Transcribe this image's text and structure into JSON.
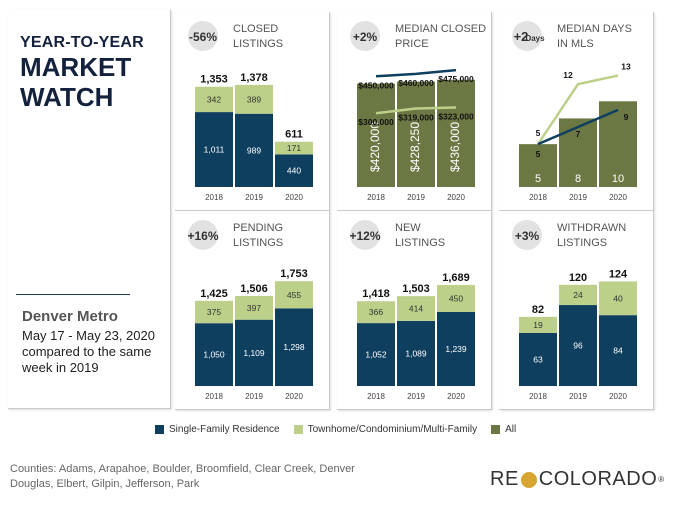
{
  "header": {
    "line1": "YEAR-TO-YEAR",
    "line2": "MARKET",
    "line3": "WATCH"
  },
  "region": {
    "name": "Denver Metro",
    "dates": "May 17 - May 23, 2020 compared to the same week in 2019"
  },
  "colors": {
    "sfr": "#0f3f5f",
    "townhome": "#bcd08a",
    "all": "#6b7844",
    "badge": "#e2e2e2"
  },
  "legend": [
    {
      "label": "Single-Family Residence",
      "color": "#0f3f5f"
    },
    {
      "label": "Townhome/Condominium/Multi-Family",
      "color": "#bcd08a"
    },
    {
      "label": "All",
      "color": "#6b7844"
    }
  ],
  "footer": {
    "counties": "Counties:  Adams, Arapahoe, Boulder, Broomfield, Clear Creek, Denver Douglas, Elbert, Gilpin, Jefferson, Park"
  },
  "logo": {
    "part1": "RE",
    "part2": "COLORADO",
    "mark": "®"
  },
  "chart_data": [
    {
      "type": "bar",
      "title": "CLOSED LISTINGS",
      "badge": "-56%",
      "categories": [
        "2018",
        "2019",
        "2020"
      ],
      "series": [
        {
          "name": "Single-Family Residence",
          "values": [
            1011,
            989,
            440
          ]
        },
        {
          "name": "Townhome/Condominium/Multi-Family",
          "values": [
            342,
            389,
            171
          ]
        }
      ],
      "totals": [
        1353,
        1378,
        611
      ],
      "labels_sfr": [
        "1,011",
        "989",
        "440"
      ],
      "labels_th": [
        "342",
        "389",
        "171"
      ],
      "labels_total": [
        "1,353",
        "1,378",
        "611"
      ]
    },
    {
      "type": "bar",
      "title": "MEDIAN CLOSED PRICE",
      "badge": "+2%",
      "categories": [
        "2018",
        "2019",
        "2020"
      ],
      "series": [
        {
          "name": "All",
          "values": [
            420000,
            428250,
            436000
          ]
        },
        {
          "name": "Single-Family Residence",
          "values": [
            450000,
            460000,
            475000
          ]
        },
        {
          "name": "Townhome/Condominium/Multi-Family",
          "values": [
            300000,
            319000,
            323000
          ]
        }
      ],
      "labels_all": [
        "$420,000",
        "$428,250",
        "$436,000"
      ],
      "labels_sfr": [
        "$450,000",
        "$460,000",
        "$475,000"
      ],
      "labels_th": [
        "$300,000",
        "$319,000",
        "$323,000"
      ]
    },
    {
      "type": "bar",
      "title": "MEDIAN DAYS IN MLS",
      "badge": "+2",
      "badge_unit": "Days",
      "categories": [
        "2018",
        "2019",
        "2020"
      ],
      "series": [
        {
          "name": "All",
          "values": [
            5,
            8,
            10
          ]
        },
        {
          "name": "Single-Family Residence",
          "values": [
            5,
            7,
            9
          ]
        },
        {
          "name": "Townhome/Condominium/Multi-Family",
          "values": [
            5,
            12,
            13
          ]
        }
      ],
      "labels_all": [
        "5",
        "8",
        "10"
      ],
      "labels_sfr": [
        "5",
        "7",
        "9"
      ],
      "labels_th": [
        "5",
        "12",
        "13"
      ]
    },
    {
      "type": "bar",
      "title": "PENDING LISTINGS",
      "badge": "+16%",
      "categories": [
        "2018",
        "2019",
        "2020"
      ],
      "series": [
        {
          "name": "Single-Family Residence",
          "values": [
            1050,
            1109,
            1298
          ]
        },
        {
          "name": "Townhome/Condominium/Multi-Family",
          "values": [
            375,
            397,
            455
          ]
        }
      ],
      "totals": [
        1425,
        1506,
        1753
      ],
      "labels_sfr": [
        "1,050",
        "1,109",
        "1,298"
      ],
      "labels_th": [
        "375",
        "397",
        "455"
      ],
      "labels_total": [
        "1,425",
        "1,506",
        "1,753"
      ]
    },
    {
      "type": "bar",
      "title": "NEW LISTINGS",
      "badge": "+12%",
      "categories": [
        "2018",
        "2019",
        "2020"
      ],
      "series": [
        {
          "name": "Single-Family Residence",
          "values": [
            1052,
            1089,
            1239
          ]
        },
        {
          "name": "Townhome/Condominium/Multi-Family",
          "values": [
            366,
            414,
            450
          ]
        }
      ],
      "totals": [
        1418,
        1503,
        1689
      ],
      "labels_sfr": [
        "1,052",
        "1,089",
        "1,239"
      ],
      "labels_th": [
        "366",
        "414",
        "450"
      ],
      "labels_total": [
        "1,418",
        "1,503",
        "1,689"
      ]
    },
    {
      "type": "bar",
      "title": "WITHDRAWN LISTINGS",
      "badge": "+3%",
      "categories": [
        "2018",
        "2019",
        "2020"
      ],
      "series": [
        {
          "name": "Single-Family Residence",
          "values": [
            63,
            96,
            84
          ]
        },
        {
          "name": "Townhome/Condominium/Multi-Family",
          "values": [
            19,
            24,
            40
          ]
        }
      ],
      "totals": [
        82,
        120,
        124
      ],
      "labels_sfr": [
        "63",
        "96",
        "84"
      ],
      "labels_th": [
        "19",
        "24",
        "40"
      ],
      "labels_total": [
        "82",
        "120",
        "124"
      ]
    }
  ]
}
